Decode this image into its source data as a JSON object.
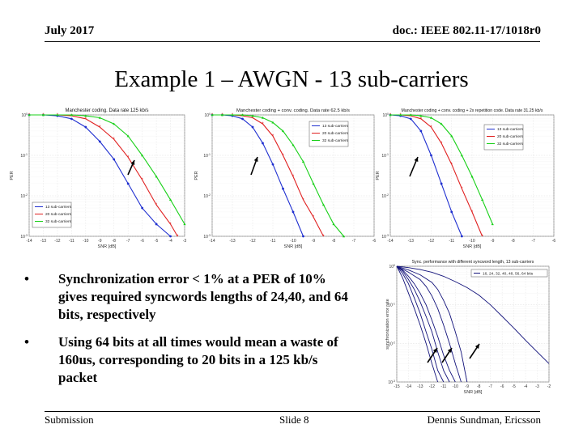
{
  "header": {
    "date": "July 2017",
    "doc": "doc.: IEEE 802.11-17/1018r0"
  },
  "title": "Example 1 – AWGN - 13 sub-carriers",
  "bullets": [
    "Synchronization error < 1% at a PER of 10% gives required syncwords lengths of 24,40, and 64 bits, respectively",
    "Using 64 bits at all times would mean a waste of 160us, corresponding to 20 bits in a 125 kb/s packet"
  ],
  "footer": {
    "left": "Submission",
    "center": "Slide 8",
    "right": "Dennis Sundman, Ericsson"
  },
  "colors": {
    "blue": "#1f2fd0",
    "red": "#e02020",
    "green": "#18d018",
    "curve": "#12127a",
    "arrow": "#000000"
  },
  "chart_data": [
    {
      "type": "line",
      "title": "Manchester coding. Data rate 125 kb/s",
      "xlabel": "SNR [dB]",
      "ylabel": "PER",
      "xlim": [
        -14,
        -3
      ],
      "ylim": [
        0.001,
        1
      ],
      "yscale": "log",
      "xticks": [
        "-14",
        "-13",
        "-12",
        "-11",
        "-10",
        "-9",
        "-8",
        "-7",
        "-6",
        "-5",
        "-4",
        "-3"
      ],
      "yticks": [
        "10^0",
        "10^-1",
        "10^-2",
        "10^-3"
      ],
      "legend": "bottom-left",
      "series": [
        {
          "name": "13 sub-carriers",
          "color": "blue",
          "x": [
            -14,
            -13,
            -12,
            -11,
            -10,
            -9,
            -8,
            -7,
            -6,
            -5,
            -4
          ],
          "y": [
            1,
            1,
            0.95,
            0.8,
            0.5,
            0.22,
            0.08,
            0.02,
            0.005,
            0.002,
            0.001
          ]
        },
        {
          "name": "20 sub-carriers",
          "color": "red",
          "x": [
            -14,
            -13,
            -12,
            -11,
            -10,
            -9,
            -8,
            -7,
            -6,
            -5,
            -4,
            -3.5
          ],
          "y": [
            1,
            1,
            1,
            0.95,
            0.8,
            0.5,
            0.25,
            0.09,
            0.025,
            0.006,
            0.002,
            0.001
          ]
        },
        {
          "name": "32 sub-carriers",
          "color": "green",
          "x": [
            -14,
            -13,
            -12,
            -11,
            -10,
            -9,
            -8,
            -7,
            -6,
            -5,
            -4,
            -3
          ],
          "y": [
            1,
            1,
            1,
            1,
            0.95,
            0.85,
            0.6,
            0.3,
            0.1,
            0.03,
            0.008,
            0.002
          ]
        }
      ]
    },
    {
      "type": "line",
      "title": "Manchester coding + conv. coding. Data rate 62.5 kb/s",
      "xlabel": "SNR [dB]",
      "ylabel": "PER",
      "xlim": [
        -14,
        -6
      ],
      "ylim": [
        0.001,
        1
      ],
      "yscale": "log",
      "xticks": [
        "-14",
        "-13",
        "-12",
        "-11",
        "-10",
        "-9",
        "-8",
        "-7",
        "-6"
      ],
      "yticks": [
        "10^0",
        "10^-1",
        "10^-2",
        "10^-3"
      ],
      "legend": "top-right",
      "series": [
        {
          "name": "13 sub-carriers",
          "color": "blue",
          "x": [
            -14,
            -13.5,
            -13,
            -12.5,
            -12,
            -11.5,
            -11,
            -10.5,
            -10,
            -9.5
          ],
          "y": [
            1,
            1,
            0.95,
            0.8,
            0.5,
            0.2,
            0.06,
            0.015,
            0.004,
            0.001
          ]
        },
        {
          "name": "20 sub-carriers",
          "color": "red",
          "x": [
            -14,
            -13.5,
            -13,
            -12.5,
            -12,
            -11.5,
            -11,
            -10.5,
            -10,
            -9.5,
            -9,
            -8.5
          ],
          "y": [
            1,
            1,
            1,
            0.95,
            0.85,
            0.6,
            0.3,
            0.1,
            0.03,
            0.008,
            0.003,
            0.001
          ]
        },
        {
          "name": "32 sub-carriers",
          "color": "green",
          "x": [
            -14,
            -13.5,
            -13,
            -12.5,
            -12,
            -11.5,
            -11,
            -10.5,
            -10,
            -9.5,
            -9,
            -8.5,
            -8,
            -7.5
          ],
          "y": [
            1,
            1,
            1,
            1,
            0.95,
            0.85,
            0.65,
            0.4,
            0.18,
            0.07,
            0.02,
            0.006,
            0.002,
            0.001
          ]
        }
      ]
    },
    {
      "type": "line",
      "title": "Manchester coding + conv. coding + 2x repetition code. Data rate 31.25 kb/s",
      "xlabel": "SNR [dB]",
      "ylabel": "PER",
      "xlim": [
        -14,
        -6
      ],
      "ylim": [
        0.001,
        1
      ],
      "yscale": "log",
      "xticks": [
        "-14",
        "-13",
        "-12",
        "-11",
        "-10",
        "-9",
        "-8",
        "-7",
        "-6"
      ],
      "yticks": [
        "10^0",
        "10^-1",
        "10^-2",
        "10^-3"
      ],
      "legend": "top-right",
      "series": [
        {
          "name": "13 sub-carriers",
          "color": "blue",
          "x": [
            -14,
            -13.5,
            -13,
            -12.5,
            -12,
            -11.5,
            -11,
            -10.5
          ],
          "y": [
            1,
            0.95,
            0.8,
            0.4,
            0.1,
            0.02,
            0.004,
            0.001
          ]
        },
        {
          "name": "20 sub-carriers",
          "color": "red",
          "x": [
            -14,
            -13.5,
            -13,
            -12.5,
            -12,
            -11.5,
            -11,
            -10.5,
            -10,
            -9.5
          ],
          "y": [
            1,
            1,
            0.95,
            0.8,
            0.5,
            0.2,
            0.06,
            0.015,
            0.004,
            0.001
          ]
        },
        {
          "name": "32 sub-carriers",
          "color": "green",
          "x": [
            -14,
            -13.5,
            -13,
            -12.5,
            -12,
            -11.5,
            -11,
            -10.5,
            -10,
            -9.5,
            -9
          ],
          "y": [
            1,
            1,
            1,
            0.95,
            0.85,
            0.6,
            0.3,
            0.1,
            0.03,
            0.008,
            0.002
          ]
        }
      ]
    },
    {
      "type": "line",
      "title": "Sync. performance with different syncword length, 13 sub-carriers",
      "xlabel": "SNR [dB]",
      "ylabel": "synchronization error rate",
      "xlim": [
        -15,
        -2
      ],
      "ylim": [
        0.001,
        1
      ],
      "yscale": "log",
      "xticks": [
        "-15",
        "-14",
        "-13",
        "-12",
        "-11",
        "-10",
        "-9",
        "-8",
        "-7",
        "-6",
        "-5",
        "-4",
        "-3",
        "-2"
      ],
      "yticks": [
        "10^0",
        "10^-1",
        "10^-2",
        "10^-3"
      ],
      "legend": "top-right",
      "legend_text": "16, 24, 32, 40, 48, 56, 64 bits",
      "series": [
        {
          "x": [
            -15,
            -14.5,
            -14,
            -13.5,
            -13,
            -12.5,
            -12,
            -11.5
          ],
          "y": [
            1,
            0.5,
            0.2,
            0.08,
            0.03,
            0.01,
            0.003,
            0.001
          ]
        },
        {
          "x": [
            -15,
            -14.5,
            -14,
            -13.5,
            -13,
            -12.5,
            -12,
            -11.5,
            -11
          ],
          "y": [
            1,
            0.65,
            0.35,
            0.15,
            0.06,
            0.02,
            0.007,
            0.002,
            0.001
          ]
        },
        {
          "x": [
            -15,
            -14.5,
            -14,
            -13.5,
            -13,
            -12.5,
            -12,
            -11.5,
            -11,
            -10.5
          ],
          "y": [
            1,
            0.75,
            0.45,
            0.25,
            0.12,
            0.05,
            0.02,
            0.006,
            0.002,
            0.001
          ]
        },
        {
          "x": [
            -15,
            -14.5,
            -14,
            -13.5,
            -13,
            -12.5,
            -12,
            -11.5,
            -11,
            -10.5,
            -10
          ],
          "y": [
            1,
            0.8,
            0.55,
            0.35,
            0.2,
            0.1,
            0.04,
            0.015,
            0.005,
            0.002,
            0.001
          ]
        },
        {
          "x": [
            -15,
            -14,
            -13,
            -12.5,
            -12,
            -11.5,
            -11,
            -10.5,
            -10,
            -9.5
          ],
          "y": [
            1,
            0.7,
            0.45,
            0.3,
            0.17,
            0.08,
            0.03,
            0.01,
            0.003,
            0.001
          ]
        },
        {
          "x": [
            -15,
            -14,
            -13,
            -12,
            -11.5,
            -11,
            -10.5,
            -10,
            -9.5,
            -9
          ],
          "y": [
            1,
            0.8,
            0.6,
            0.38,
            0.25,
            0.13,
            0.06,
            0.02,
            0.006,
            0.001
          ]
        },
        {
          "x": [
            -15,
            -14,
            -13,
            -12,
            -11,
            -10,
            -9,
            -8,
            -7,
            -6,
            -5,
            -4,
            -3,
            -2
          ],
          "y": [
            1,
            0.92,
            0.82,
            0.7,
            0.55,
            0.4,
            0.28,
            0.18,
            0.1,
            0.05,
            0.025,
            0.012,
            0.006,
            0.003
          ]
        }
      ]
    }
  ]
}
